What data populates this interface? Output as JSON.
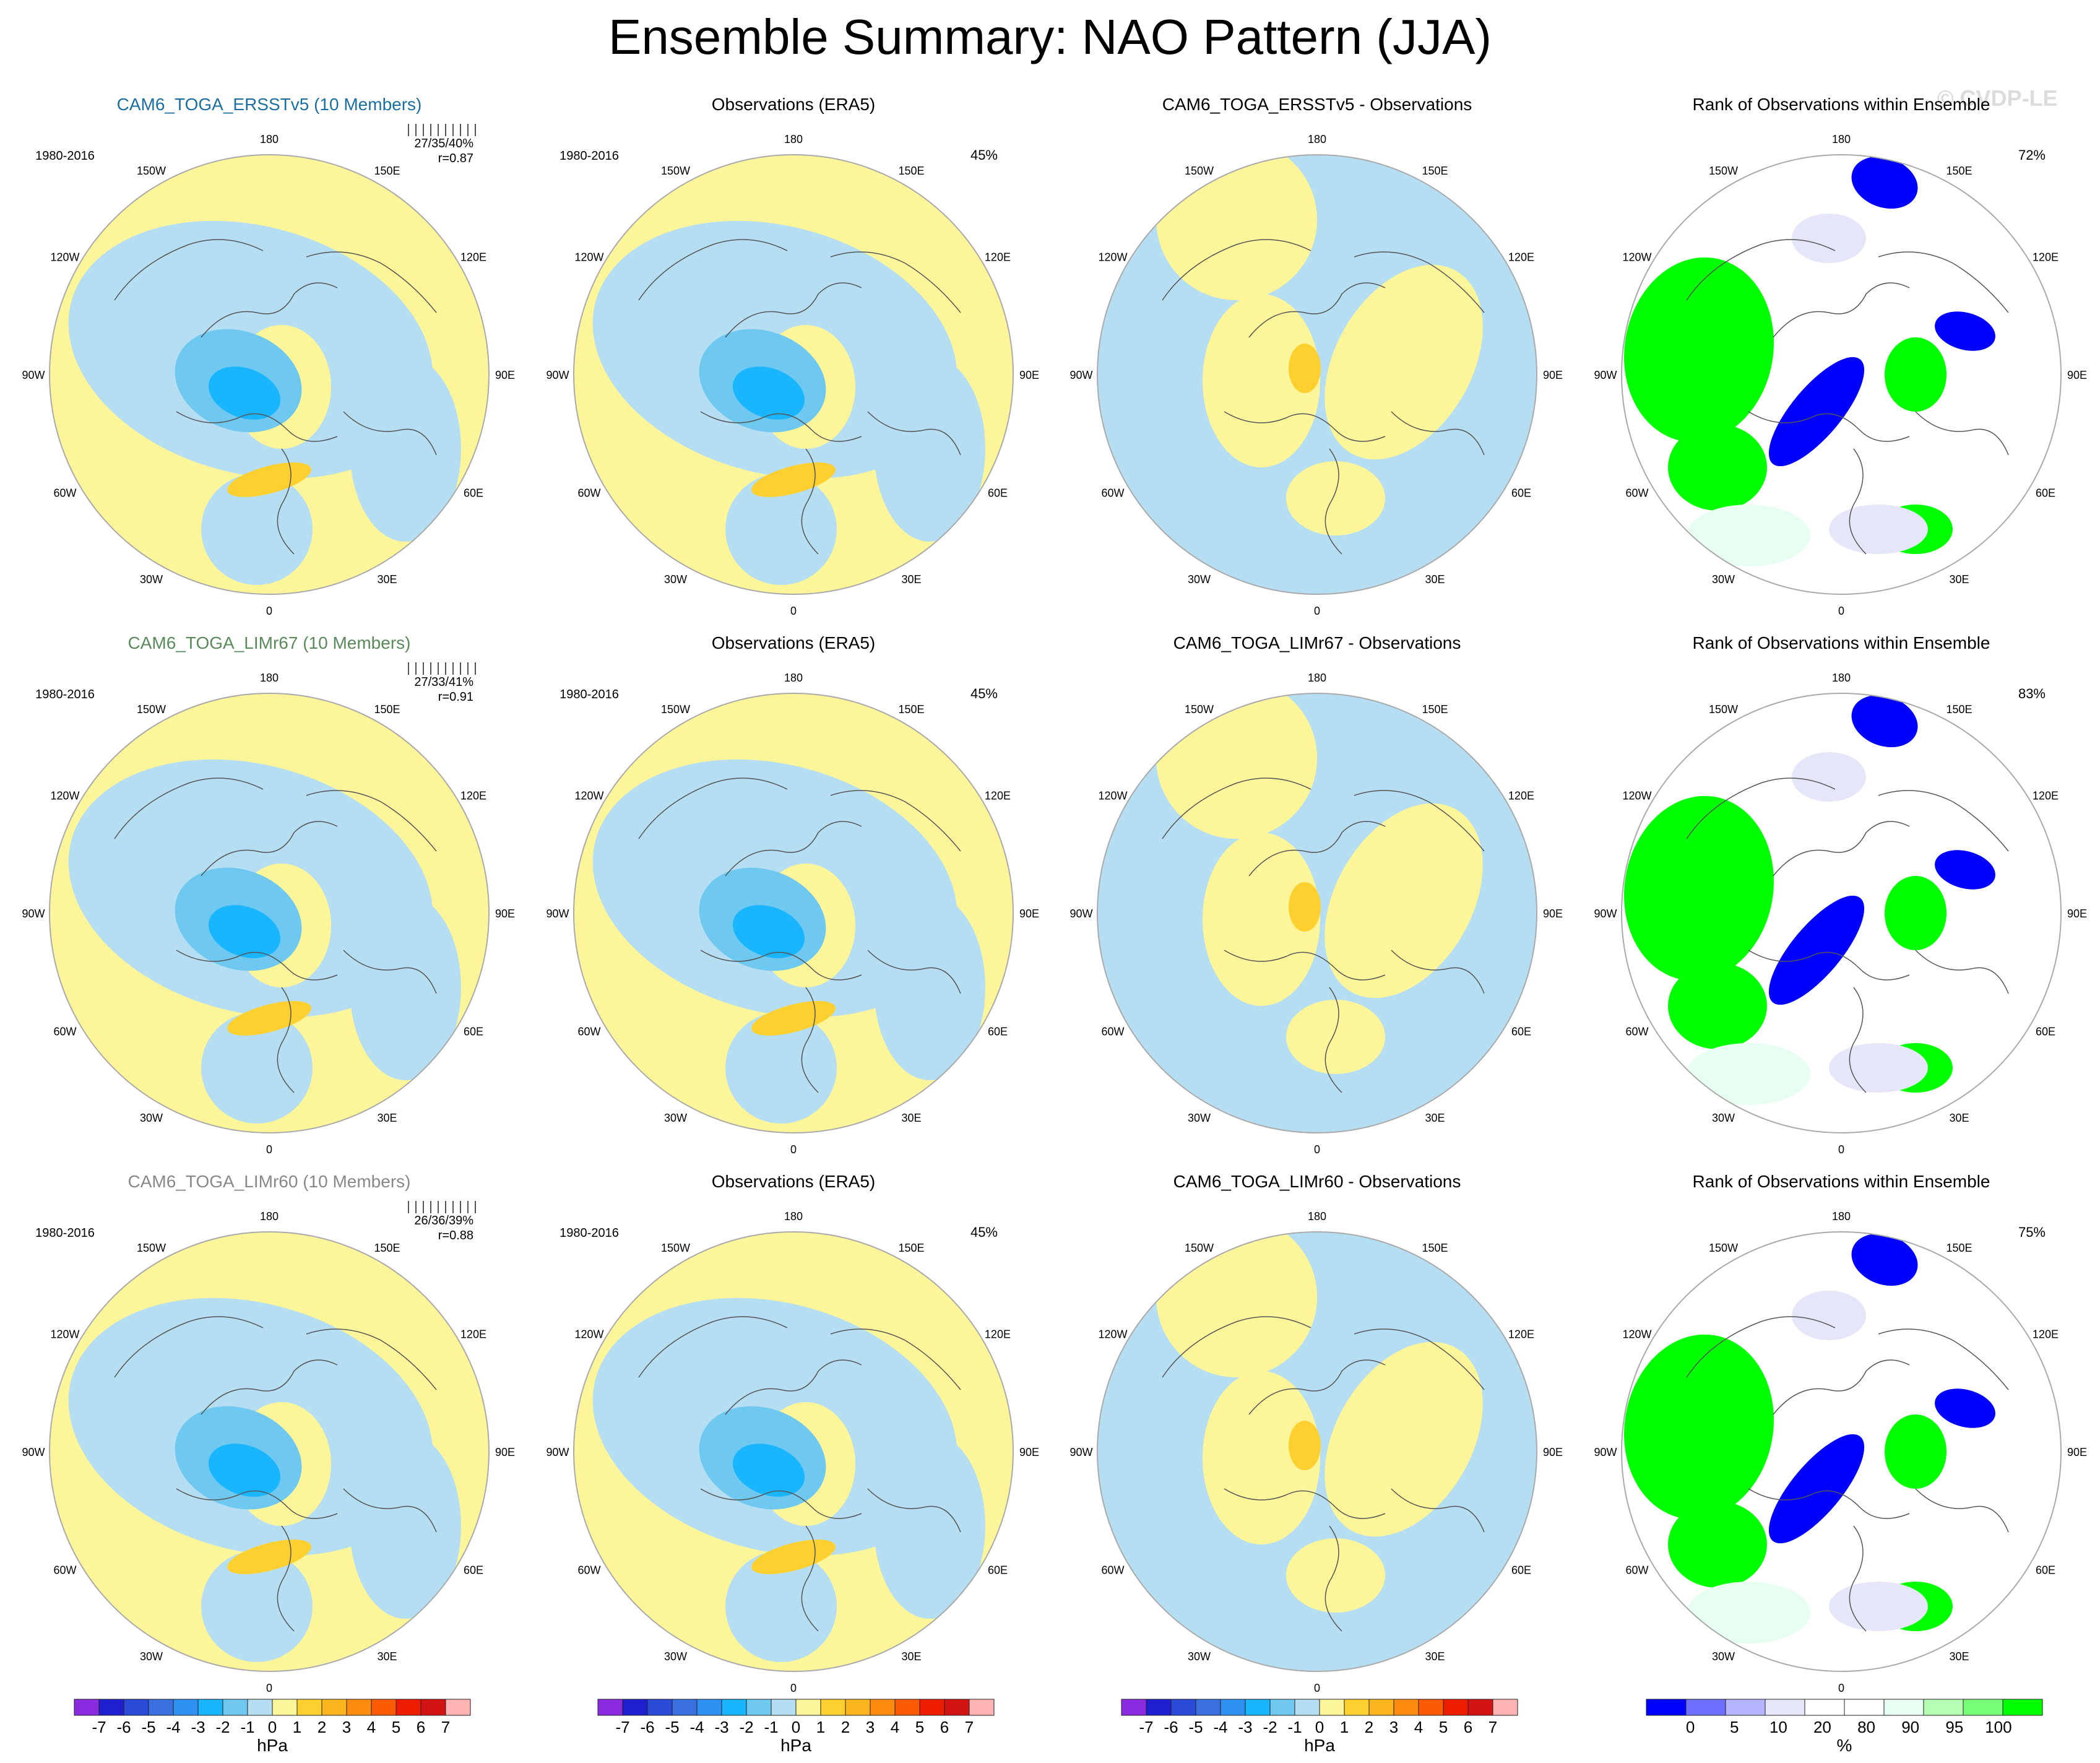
{
  "title": "Ensemble Summary: NAO Pattern (JJA)",
  "watermark": "© CVDP-LE",
  "period": "1980-2016",
  "lon_labels": [
    "180",
    "150E",
    "120E",
    "90E",
    "60E",
    "30E",
    "0",
    "30W",
    "60W",
    "90W",
    "120W",
    "150W"
  ],
  "rows": [
    {
      "model": "CAM6_TOGA_ERSSTv5 (10 Members)",
      "model_color": "#1a6fa0",
      "stats": "27/35/40%",
      "corr": "r=0.87",
      "obs_title": "Observations (ERA5)",
      "obs_pct": "45%",
      "diff_title": "CAM6_TOGA_ERSSTv5 - Observations",
      "rank_title": "Rank of Observations within Ensemble",
      "rank_pct": "72%"
    },
    {
      "model": "CAM6_TOGA_LIMr67 (10 Members)",
      "model_color": "#5a8a5a",
      "stats": "27/33/41%",
      "corr": "r=0.91",
      "obs_title": "Observations (ERA5)",
      "obs_pct": "45%",
      "diff_title": "CAM6_TOGA_LIMr67 - Observations",
      "rank_title": "Rank of Observations within Ensemble",
      "rank_pct": "83%"
    },
    {
      "model": "CAM6_TOGA_LIMr60 (10 Members)",
      "model_color": "#888888",
      "stats": "26/36/39%",
      "corr": "r=0.88",
      "obs_title": "Observations (ERA5)",
      "obs_pct": "45%",
      "diff_title": "CAM6_TOGA_LIMr60 - Observations",
      "rank_title": "Rank of Observations within Ensemble",
      "rank_pct": "75%"
    }
  ],
  "hpa_colorbar": {
    "colors": [
      "#8a2be2",
      "#1f1fd0",
      "#2a4bd8",
      "#3a6fe0",
      "#2e90f0",
      "#19b5ff",
      "#6fc8ef",
      "#b5def2",
      "#fdf59a",
      "#fdd02f",
      "#fdb51d",
      "#fd8c0e",
      "#fd5a05",
      "#f01c02",
      "#d41414",
      "#ffb3b3"
    ],
    "labels": [
      "-7",
      "-6",
      "-5",
      "-4",
      "-3",
      "-2",
      "-1",
      "0",
      "1",
      "2",
      "3",
      "4",
      "5",
      "6",
      "7"
    ],
    "unit": "hPa"
  },
  "rank_colorbar": {
    "colors": [
      "#0000ff",
      "#6e6eff",
      "#b4b4ff",
      "#e6e6fa",
      "#ffffff",
      "#ffffff",
      "#e6fff0",
      "#b4ffb4",
      "#78ff78",
      "#00ff00"
    ],
    "labels": [
      "0",
      "5",
      "10",
      "20",
      "80",
      "90",
      "95",
      "100"
    ],
    "unit": "%"
  },
  "palette": {
    "land_yellow": "#fdf59a",
    "ocean_blue": "#b5def2",
    "neg1": "#6fc8ef",
    "neg2": "#19b5ff",
    "pos1": "#fdd02f",
    "rank_low": "#0000ff",
    "rank_high": "#00ff00",
    "rank_lav": "#e6e6fa",
    "rank_mint": "#e6fff0"
  }
}
